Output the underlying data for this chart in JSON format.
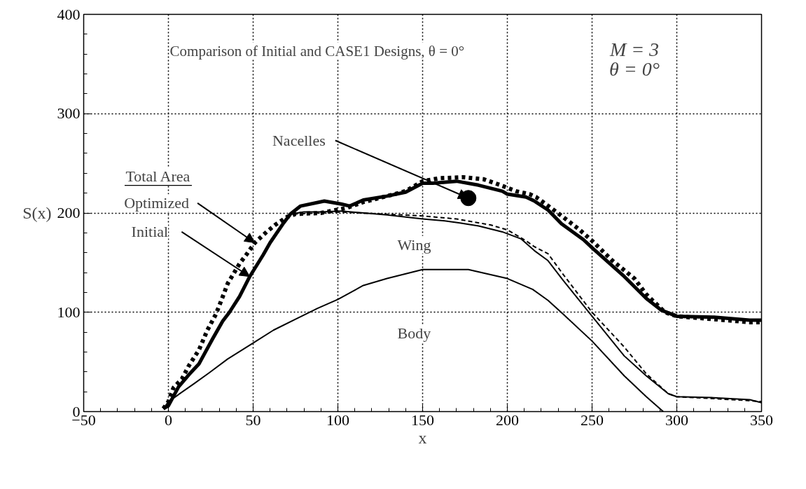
{
  "chart_data": {
    "type": "line",
    "title": "Comparison of Initial and CASE1 Designs,  θ = 0°",
    "xlabel": "x",
    "ylabel": "S(x)",
    "xlim": [
      -50,
      350
    ],
    "ylim": [
      0,
      400
    ],
    "xticks": [
      -50,
      0,
      50,
      100,
      150,
      200,
      250,
      300,
      350
    ],
    "yticks": [
      0,
      100,
      200,
      300,
      400
    ],
    "grid": true,
    "series": [
      {
        "color": "#000000",
        "line_style": "solid",
        "x": [
          -3,
          0,
          6,
          12,
          18,
          26,
          32,
          36,
          42,
          48,
          56,
          60,
          68,
          72,
          78,
          92,
          102,
          107,
          115,
          129,
          140,
          150,
          156,
          170,
          183,
          197,
          200,
          211,
          216,
          224,
          232,
          245,
          250,
          269,
          282,
          291,
          300,
          322,
          343,
          350
        ],
        "values": [
          3,
          6,
          25,
          37,
          48,
          73,
          91,
          100,
          116,
          136,
          158,
          170,
          190,
          199,
          207,
          212,
          209,
          207,
          213,
          217,
          221,
          230,
          230,
          232,
          228,
          222,
          219,
          216,
          212,
          203,
          189,
          173,
          165,
          136,
          114,
          102,
          96,
          95,
          92,
          92
        ]
      },
      {
        "color": "#000000",
        "line_style": "dotted",
        "x": [
          -3,
          0,
          3,
          8,
          12,
          18,
          23,
          28,
          31,
          35,
          42,
          46,
          51,
          58,
          63,
          70,
          75,
          90,
          105,
          115,
          129,
          140,
          150,
          160,
          174,
          186,
          196,
          205,
          213,
          217,
          229,
          242,
          250,
          262,
          275,
          282,
          293,
          300,
          322,
          343,
          350
        ],
        "values": [
          3,
          10,
          24,
          33,
          46,
          62,
          82,
          98,
          111,
          129,
          149,
          158,
          170,
          181,
          188,
          196,
          199,
          200,
          205,
          211,
          217,
          222,
          232,
          235,
          236,
          234,
          228,
          222,
          219,
          216,
          201,
          184,
          172,
          152,
          134,
          118,
          100,
          96,
          93,
          90,
          90
        ]
      },
      {
        "color": "#000000",
        "line_style": "solid",
        "x": [
          -3,
          0,
          6,
          12,
          18,
          26,
          32,
          36,
          42,
          48,
          56,
          60,
          68,
          72,
          80,
          90,
          102,
          129,
          150,
          163,
          172,
          183,
          197,
          208,
          216,
          224,
          233,
          250,
          269,
          282,
          295,
          300,
          322,
          343,
          350
        ],
        "values": [
          3,
          6,
          25,
          37,
          48,
          73,
          91,
          100,
          116,
          136,
          158,
          170,
          190,
          199,
          201,
          201,
          202,
          198,
          194,
          192,
          190,
          187,
          181,
          174,
          162,
          152,
          132,
          96,
          56,
          36,
          18,
          15,
          14,
          12,
          9
        ]
      },
      {
        "color": "#000000",
        "line_style": "dashed",
        "x": [
          70,
          75,
          90,
          102,
          150,
          170,
          190,
          200,
          211,
          216,
          224,
          233,
          250,
          269,
          282,
          295,
          300,
          322,
          343,
          350
        ],
        "values": [
          196,
          199,
          200,
          201,
          197,
          194,
          188,
          183,
          172,
          166,
          159,
          138,
          100,
          65,
          38,
          18,
          15,
          13,
          11,
          10
        ]
      },
      {
        "color": "#000000",
        "line_style": "solid",
        "x": [
          -3,
          0,
          15,
          24,
          35,
          50,
          62,
          75,
          88,
          100,
          115,
          129,
          150,
          177,
          200,
          215,
          224,
          233,
          250,
          269,
          282,
          292
        ],
        "values": [
          3,
          10,
          28,
          39,
          53,
          69,
          82,
          93,
          104,
          113,
          127,
          134,
          143,
          143,
          134,
          123,
          112,
          98,
          71,
          36,
          15,
          0
        ]
      },
      {
        "type": "scatter",
        "color": "#000000",
        "marker": "circle",
        "x": [
          177
        ],
        "values": [
          215
        ]
      }
    ],
    "annotations": [
      "Total Area",
      {
        "text": "Optimized",
        "x": 51,
        "y": 170
      },
      {
        "text": "Initial",
        "x": 48,
        "y": 136
      },
      {
        "text": "Nacelles",
        "x": 177,
        "y": 215
      },
      "Wing",
      "Body",
      "M = 3",
      "θ = 0°"
    ]
  }
}
